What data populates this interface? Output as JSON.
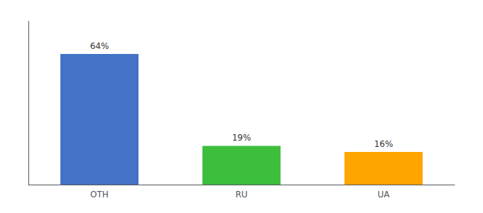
{
  "chart_data": {
    "type": "bar",
    "categories": [
      "OTH",
      "RU",
      "UA"
    ],
    "values": [
      64,
      19,
      16
    ],
    "value_labels": [
      "64%",
      "19%",
      "16%"
    ],
    "colors": [
      "#4472C4",
      "#3DBE3D",
      "#FFA500"
    ],
    "ylim": [
      0,
      80
    ],
    "grid": false,
    "data_labels": true,
    "tick_labels": "x"
  }
}
